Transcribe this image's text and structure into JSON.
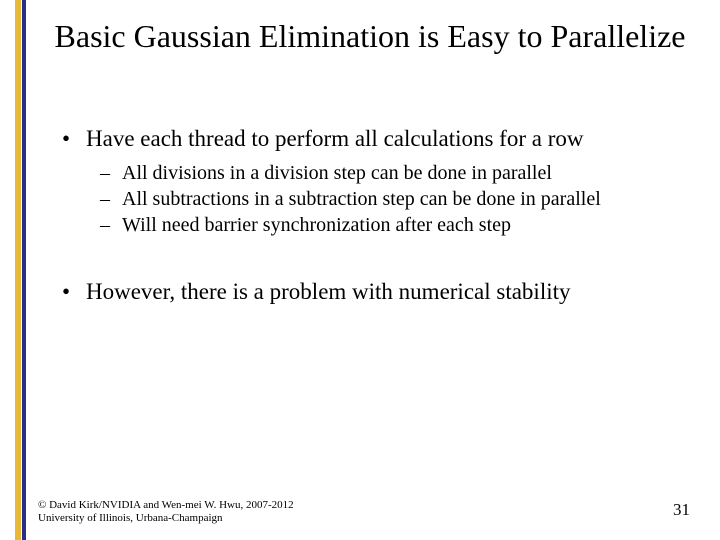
{
  "colors": {
    "background": "#ffffff",
    "bar_gold": "#e8b838",
    "bar_blue": "#2c2e86",
    "text": "#000000"
  },
  "typography": {
    "family": "Times New Roman",
    "title_fontsize": 32,
    "l1_fontsize": 23,
    "l2_fontsize": 20,
    "footer_fontsize": 11,
    "pagenum_fontsize": 17
  },
  "title": "Basic Gaussian Elimination is Easy to Parallelize",
  "bullets": {
    "b1": "Have each thread to perform all calculations for a row",
    "b1_sub": {
      "s1": "All divisions in a division step can be done in parallel",
      "s2": "All subtractions in a subtraction step can be done in parallel",
      "s3": "Will need barrier synchronization after each step"
    },
    "b2": "However, there is a problem with numerical stability"
  },
  "footer": {
    "line1": "© David Kirk/NVIDIA and Wen-mei W. Hwu, 2007-2012",
    "line2": "University of Illinois, Urbana-Champaign",
    "page_number": "31"
  }
}
